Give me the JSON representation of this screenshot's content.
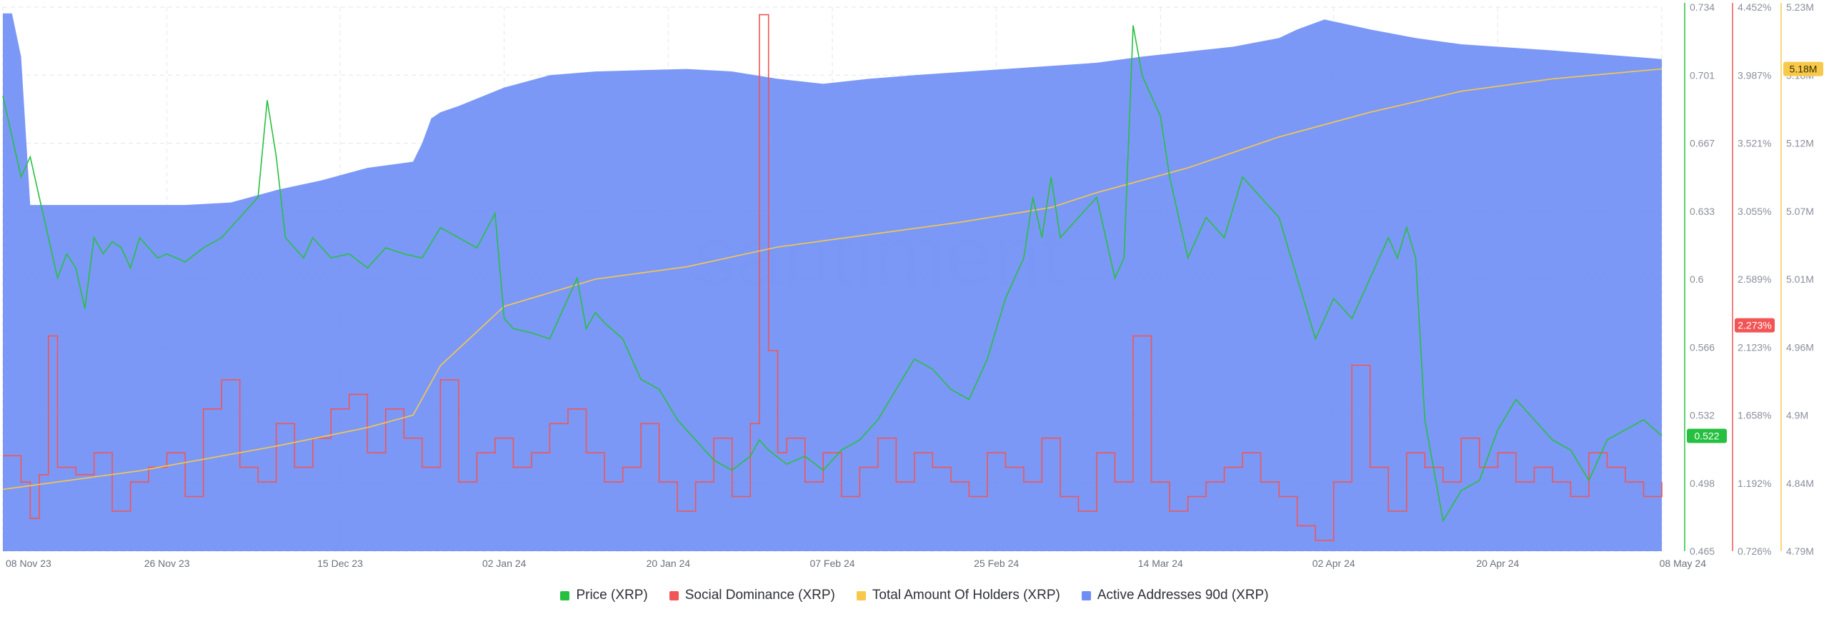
{
  "watermark": "santiment",
  "legend": [
    {
      "label": "Price (XRP)",
      "color": "#26c040"
    },
    {
      "label": "Social Dominance (XRP)",
      "color": "#f25555"
    },
    {
      "label": "Total Amount Of Holders (XRP)",
      "color": "#f7c84a"
    },
    {
      "label": "Active Addresses 90d (XRP)",
      "color": "#6e8df5"
    }
  ],
  "chart_data": {
    "type": "line",
    "x_ticks": [
      "08 Nov 23",
      "26 Nov 23",
      "15 Dec 23",
      "02 Jan 24",
      "20 Jan 24",
      "07 Feb 24",
      "25 Feb 24",
      "14 Mar 24",
      "02 Apr 24",
      "20 Apr 24",
      "08 May 24"
    ],
    "x_tick_days": [
      0,
      18,
      37,
      55,
      73,
      91,
      109,
      127,
      146,
      164,
      182
    ],
    "grid": true,
    "axes": [
      {
        "series": "Price (XRP)",
        "color": "#26c040",
        "ticks": [
          "0.734",
          "0.701",
          "0.667",
          "0.633",
          "0.6",
          "0.566",
          "0.532",
          "0.498",
          "0.465"
        ],
        "range": [
          0.465,
          0.734
        ],
        "current": "0.522"
      },
      {
        "series": "Social Dominance (XRP)",
        "color": "#f25555",
        "ticks": [
          "4.452%",
          "3.987%",
          "3.521%",
          "3.055%",
          "2.589%",
          "2.123%",
          "1.658%",
          "1.192%",
          "0.726%"
        ],
        "range": [
          0.726,
          4.452
        ],
        "current": "2.273%"
      },
      {
        "series": "Total Amount Of Holders (XRP)",
        "color": "#f7c84a",
        "ticks": [
          "5.23M",
          "5.18M",
          "5.12M",
          "5.07M",
          "5.01M",
          "4.96M",
          "4.9M",
          "4.84M",
          "4.79M"
        ],
        "range": [
          4.79,
          5.23
        ],
        "current": "5.18M"
      }
    ],
    "series": [
      {
        "name": "Price (XRP)",
        "color": "#26c040",
        "x": [
          0,
          1,
          2,
          3,
          4,
          5,
          6,
          7,
          8,
          9,
          10,
          11,
          12,
          13,
          14,
          15,
          16,
          17,
          18,
          20,
          22,
          24,
          26,
          28,
          29,
          30,
          31,
          32,
          33,
          34,
          36,
          38,
          40,
          42,
          44,
          46,
          48,
          50,
          52,
          54,
          55,
          56,
          58,
          60,
          62,
          63,
          64,
          65,
          66,
          68,
          69,
          70,
          72,
          74,
          76,
          78,
          80,
          82,
          83,
          84,
          86,
          88,
          90,
          92,
          94,
          96,
          98,
          100,
          102,
          104,
          106,
          108,
          110,
          111,
          112,
          113,
          114,
          115,
          116,
          118,
          120,
          122,
          123,
          124,
          125,
          126,
          127,
          128,
          130,
          132,
          134,
          136,
          138,
          140,
          142,
          144,
          146,
          148,
          150,
          152,
          153,
          154,
          155,
          156,
          158,
          160,
          162,
          164,
          166,
          168,
          170,
          172,
          174,
          176,
          178,
          180,
          182
        ],
        "values": [
          0.69,
          0.67,
          0.65,
          0.66,
          0.64,
          0.62,
          0.6,
          0.612,
          0.605,
          0.585,
          0.62,
          0.612,
          0.618,
          0.615,
          0.605,
          0.62,
          0.615,
          0.61,
          0.612,
          0.608,
          0.615,
          0.62,
          0.63,
          0.64,
          0.688,
          0.66,
          0.62,
          0.615,
          0.61,
          0.62,
          0.61,
          0.612,
          0.605,
          0.615,
          0.612,
          0.61,
          0.625,
          0.62,
          0.615,
          0.632,
          0.58,
          0.575,
          0.573,
          0.57,
          0.59,
          0.6,
          0.575,
          0.583,
          0.578,
          0.57,
          0.56,
          0.55,
          0.545,
          0.53,
          0.52,
          0.51,
          0.505,
          0.512,
          0.52,
          0.515,
          0.508,
          0.512,
          0.505,
          0.515,
          0.52,
          0.53,
          0.545,
          0.56,
          0.555,
          0.545,
          0.54,
          0.56,
          0.59,
          0.6,
          0.61,
          0.64,
          0.62,
          0.65,
          0.62,
          0.63,
          0.64,
          0.6,
          0.61,
          0.725,
          0.7,
          0.69,
          0.68,
          0.65,
          0.61,
          0.63,
          0.62,
          0.65,
          0.64,
          0.63,
          0.6,
          0.57,
          0.59,
          0.58,
          0.6,
          0.62,
          0.61,
          0.625,
          0.61,
          0.53,
          0.48,
          0.495,
          0.5,
          0.525,
          0.54,
          0.53,
          0.52,
          0.515,
          0.5,
          0.52,
          0.525,
          0.53,
          0.522
        ]
      },
      {
        "name": "Social Dominance (XRP)",
        "color": "#f25555",
        "x": [
          0,
          2,
          3,
          4,
          5,
          6,
          8,
          10,
          12,
          14,
          16,
          18,
          20,
          22,
          24,
          26,
          28,
          30,
          32,
          34,
          36,
          38,
          40,
          42,
          44,
          46,
          48,
          50,
          52,
          54,
          56,
          58,
          60,
          62,
          64,
          66,
          68,
          70,
          72,
          74,
          76,
          78,
          80,
          82,
          83,
          84,
          85,
          86,
          88,
          90,
          92,
          94,
          96,
          98,
          100,
          102,
          104,
          106,
          108,
          110,
          112,
          114,
          116,
          118,
          120,
          122,
          124,
          126,
          128,
          130,
          132,
          134,
          136,
          138,
          140,
          142,
          144,
          146,
          148,
          150,
          152,
          154,
          156,
          158,
          160,
          162,
          164,
          166,
          168,
          170,
          172,
          174,
          176,
          178,
          180,
          182
        ],
        "values": [
          1.38,
          1.2,
          0.95,
          1.25,
          2.2,
          1.3,
          1.25,
          1.4,
          1.0,
          1.2,
          1.3,
          1.4,
          1.1,
          1.7,
          1.9,
          1.3,
          1.2,
          1.6,
          1.3,
          1.5,
          1.7,
          1.8,
          1.4,
          1.7,
          1.5,
          1.3,
          1.9,
          1.2,
          1.4,
          1.5,
          1.3,
          1.4,
          1.6,
          1.7,
          1.4,
          1.2,
          1.3,
          1.6,
          1.2,
          1.0,
          1.2,
          1.5,
          1.1,
          1.6,
          4.4,
          2.1,
          1.4,
          1.5,
          1.2,
          1.4,
          1.1,
          1.3,
          1.5,
          1.2,
          1.4,
          1.3,
          1.2,
          1.1,
          1.4,
          1.3,
          1.2,
          1.5,
          1.1,
          1.0,
          1.4,
          1.2,
          2.2,
          1.2,
          1.0,
          1.1,
          1.2,
          1.3,
          1.4,
          1.2,
          1.1,
          0.9,
          0.8,
          1.2,
          2.0,
          1.3,
          1.0,
          1.4,
          1.3,
          1.2,
          1.5,
          1.3,
          1.4,
          1.2,
          1.3,
          1.2,
          1.1,
          1.4,
          1.3,
          1.2,
          1.1,
          1.2
        ]
      },
      {
        "name": "Total Amount Of Holders (XRP)",
        "color": "#f7c84a",
        "x": [
          0,
          15,
          30,
          40,
          45,
          48,
          55,
          65,
          75,
          85,
          95,
          105,
          115,
          120,
          125,
          130,
          140,
          150,
          160,
          170,
          182
        ],
        "values": [
          4.84,
          4.855,
          4.875,
          4.89,
          4.9,
          4.94,
          4.988,
          5.01,
          5.02,
          5.036,
          5.046,
          5.056,
          5.068,
          5.08,
          5.09,
          5.1,
          5.125,
          5.145,
          5.162,
          5.172,
          5.18
        ]
      },
      {
        "name": "Active Addresses 90d (XRP)",
        "color": "#6e8df5",
        "x": [
          0,
          1,
          2,
          3,
          5,
          10,
          15,
          20,
          25,
          30,
          35,
          40,
          45,
          46,
          47,
          48,
          50,
          55,
          60,
          65,
          70,
          75,
          80,
          85,
          90,
          95,
          100,
          110,
          120,
          125,
          130,
          135,
          140,
          142,
          145,
          150,
          155,
          160,
          170,
          182
        ],
        "values": [
          5.225,
          5.225,
          5.19,
          5.07,
          5.07,
          5.07,
          5.07,
          5.07,
          5.072,
          5.082,
          5.09,
          5.1,
          5.105,
          5.12,
          5.14,
          5.145,
          5.15,
          5.165,
          5.175,
          5.178,
          5.179,
          5.18,
          5.178,
          5.172,
          5.168,
          5.172,
          5.175,
          5.18,
          5.185,
          5.19,
          5.194,
          5.198,
          5.205,
          5.212,
          5.22,
          5.212,
          5.205,
          5.2,
          5.195,
          5.188
        ]
      }
    ]
  }
}
